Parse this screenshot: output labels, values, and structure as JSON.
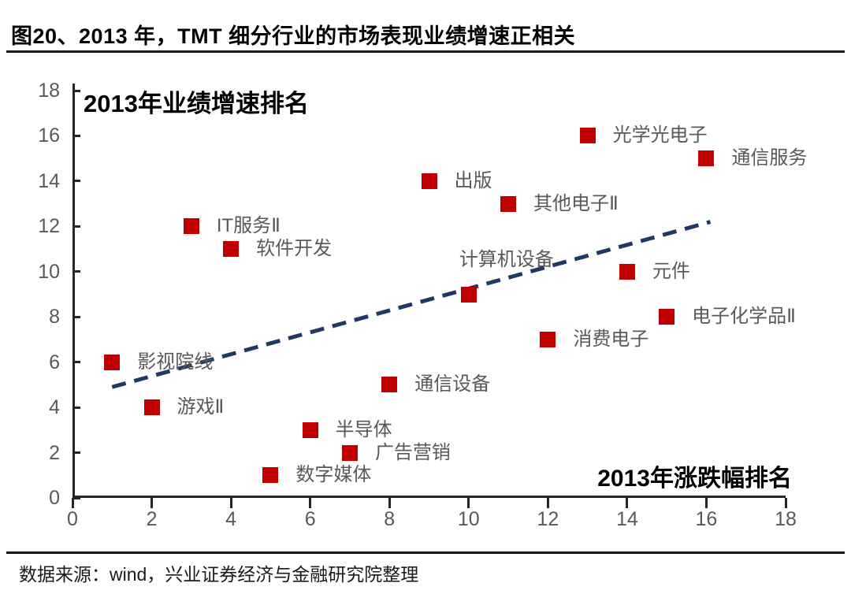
{
  "page": {
    "title": "图20、2013 年，TMT 细分行业的市场表现业绩增速正相关",
    "source": "数据来源：wind，兴业证券经济与金融研究院整理"
  },
  "colors": {
    "marker": "#c00000",
    "trendline": "#1f3864",
    "point_label": "#595959",
    "tick_label": "#595959",
    "axis": "#262626",
    "title": "#000000"
  },
  "chart_data": {
    "type": "scatter",
    "title": "图20、2013 年，TMT 细分行业的市场表现业绩增速正相关",
    "y_axis_label": "2013年业绩增速排名",
    "x_axis_label": "2013年涨跌幅排名",
    "xlim": [
      0,
      18
    ],
    "ylim": [
      0,
      18
    ],
    "x_ticks": [
      0,
      2,
      4,
      6,
      8,
      10,
      12,
      14,
      16,
      18
    ],
    "y_ticks": [
      0,
      2,
      4,
      6,
      8,
      10,
      12,
      14,
      16,
      18
    ],
    "grid": false,
    "legend": "none",
    "marker_shape": "square",
    "marker_color": "#c00000",
    "points": [
      {
        "label": "影视院线",
        "x": 1,
        "y": 6,
        "label_position": "right"
      },
      {
        "label": "游戏Ⅱ",
        "x": 2,
        "y": 4,
        "label_position": "right"
      },
      {
        "label": "IT服务Ⅱ",
        "x": 3,
        "y": 12,
        "label_position": "right"
      },
      {
        "label": "软件开发",
        "x": 4,
        "y": 11,
        "label_position": "right"
      },
      {
        "label": "数字媒体",
        "x": 5,
        "y": 1,
        "label_position": "right"
      },
      {
        "label": "半导体",
        "x": 6,
        "y": 3,
        "label_position": "right"
      },
      {
        "label": "广告营销",
        "x": 7,
        "y": 2,
        "label_position": "right"
      },
      {
        "label": "通信设备",
        "x": 8,
        "y": 5,
        "label_position": "right"
      },
      {
        "label": "出版",
        "x": 9,
        "y": 14,
        "label_position": "right"
      },
      {
        "label": "计算机设备",
        "x": 10,
        "y": 9,
        "label_position": "above"
      },
      {
        "label": "其他电子Ⅱ",
        "x": 11,
        "y": 13,
        "label_position": "right"
      },
      {
        "label": "消费电子",
        "x": 12,
        "y": 7,
        "label_position": "right"
      },
      {
        "label": "光学光电子",
        "x": 13,
        "y": 16,
        "label_position": "right"
      },
      {
        "label": "元件",
        "x": 14,
        "y": 10,
        "label_position": "right"
      },
      {
        "label": "电子化学品Ⅱ",
        "x": 15,
        "y": 8,
        "label_position": "right"
      },
      {
        "label": "通信服务",
        "x": 16,
        "y": 15,
        "label_position": "right"
      }
    ],
    "trendline": {
      "style": "dashed",
      "color": "#1f3864",
      "x1": 1,
      "y1": 4.9,
      "x2": 16.1,
      "y2": 12.2
    }
  }
}
